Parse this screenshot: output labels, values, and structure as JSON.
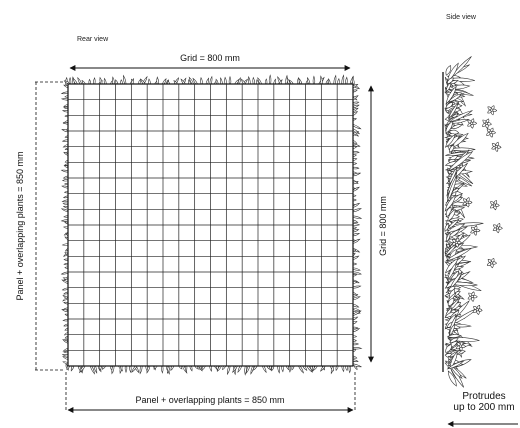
{
  "rear_view": {
    "title": "Rear view",
    "grid_width_label": "Grid = 800 mm",
    "grid_height_label": "Grid = 800 mm",
    "panel_height_label": "Panel + overlapping plants = 850 mm",
    "panel_width_label": "Panel + overlapping plants = 850 mm"
  },
  "side_view": {
    "title": "Side view",
    "protrude_line1": "Protrudes",
    "protrude_line2": "up to 200 mm"
  }
}
